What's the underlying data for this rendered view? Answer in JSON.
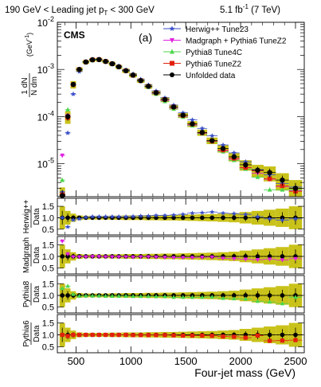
{
  "header": {
    "selection": "190 GeV < Leading jet p",
    "selection_sub": "T",
    "selection_tail": " < 300 GeV",
    "lumi": "5.1 fb",
    "lumi_sup": "-1",
    "energy": " (7 TeV)"
  },
  "chart_data": {
    "type": "scatter",
    "tag": "CMS",
    "panel_label": "(a)",
    "xlabel": "Four-jet mass (GeV)",
    "xlim": [
      330,
      2580
    ],
    "x_ticks": [
      500,
      1000,
      1500,
      2000,
      2500
    ],
    "main": {
      "ylabel_num": "1 dN",
      "ylabel_den": "N dm",
      "ylabel_unit": "(GeV",
      "ylabel_unit_sup": "-1",
      "ylabel_unit_close": ")",
      "yscale": "log",
      "ylim": [
        2e-06,
        0.01
      ],
      "y_ticks": [
        {
          "value": 0.01,
          "base": "10",
          "exp": "-2"
        },
        {
          "value": 0.001,
          "base": "10",
          "exp": "-3"
        },
        {
          "value": 0.0001,
          "base": "10",
          "exp": "-4"
        },
        {
          "value": 1e-05,
          "base": "10",
          "exp": "-5"
        }
      ],
      "legend_position": "top-right",
      "x": [
        375,
        425,
        475,
        530,
        590,
        650,
        710,
        770,
        830,
        890,
        955,
        1020,
        1090,
        1160,
        1230,
        1310,
        1390,
        1475,
        1560,
        1650,
        1740,
        1840,
        1940,
        2045,
        2155,
        2265,
        2380,
        2500
      ],
      "xerr": [
        25,
        25,
        25,
        30,
        30,
        30,
        30,
        30,
        30,
        30,
        35,
        35,
        35,
        35,
        40,
        40,
        40,
        45,
        45,
        45,
        50,
        50,
        50,
        55,
        55,
        55,
        60,
        60
      ],
      "band_rel": [
        0.5,
        0.3,
        0.18,
        0.1,
        0.08,
        0.08,
        0.08,
        0.08,
        0.09,
        0.09,
        0.1,
        0.1,
        0.1,
        0.11,
        0.11,
        0.12,
        0.12,
        0.13,
        0.14,
        0.15,
        0.16,
        0.18,
        0.2,
        0.25,
        0.3,
        0.35,
        0.4,
        0.5
      ],
      "series": [
        {
          "name": "Herwig++ Tune23",
          "color": "#3b4fc9",
          "marker": "star",
          "values": [
            2.5e-06,
            4.5e-05,
            0.0003,
            0.0009,
            0.00145,
            0.00165,
            0.00165,
            0.0015,
            0.00135,
            0.00118,
            0.00098,
            0.0008,
            0.00062,
            0.00047,
            0.00035,
            0.00025,
            0.000175,
            0.00012,
            8.5e-05,
            5.6e-05,
            3.9e-05,
            2.5e-05,
            1.7e-05,
            1.1e-05,
            7.5e-06,
            5.8e-06,
            3.8e-06,
            3.2e-06
          ]
        },
        {
          "name": "Madgraph + Pythia6 TuneZ2",
          "color": "#e020e0",
          "marker": "triangle-down",
          "values": [
            1.5e-05,
            0.000105,
            0.00047,
            0.00098,
            0.00142,
            0.00158,
            0.0016,
            0.00145,
            0.0013,
            0.00112,
            0.00092,
            0.00074,
            0.00057,
            0.00043,
            0.00031,
            0.00022,
            0.00015,
            0.0001,
            6.6e-05,
            4.4e-05,
            3e-05,
            1.9e-05,
            1.25e-05,
            8.2e-06,
            6.3e-06,
            4.7e-06,
            3.3e-06,
            2.7e-06
          ]
        },
        {
          "name": "Pythia8 Tune4C",
          "color": "#4cd64c",
          "marker": "triangle-up",
          "values": [
            4.5e-06,
            0.00014,
            0.0005,
            0.00097,
            0.0014,
            0.00156,
            0.00158,
            0.00144,
            0.00129,
            0.00111,
            0.00091,
            0.00073,
            0.00056,
            0.00042,
            0.0003,
            0.00021,
            0.000145,
            9.8e-05,
            6.4e-05,
            4.3e-05,
            2.9e-05,
            1.8e-05,
            1.18e-05,
            7.7e-06,
            5.2e-06,
            2.8e-06,
            2.8e-06,
            2.8e-06
          ]
        },
        {
          "name": "Pythia6 TuneZ2",
          "color": "#e3200c",
          "marker": "square",
          "values": [
            2.2e-06,
            9.5e-05,
            0.00048,
            0.001,
            0.00144,
            0.0016,
            0.00162,
            0.00148,
            0.00132,
            0.00114,
            0.00094,
            0.00075,
            0.00058,
            0.00044,
            0.00032,
            0.00023,
            0.00016,
            0.000105,
            6.9e-05,
            4.5e-05,
            3e-05,
            1.95e-05,
            1.3e-05,
            8.3e-06,
            7.1e-06,
            4.8e-06,
            3.4e-06,
            2.6e-06
          ]
        },
        {
          "name": "Unfolded data",
          "color": "#000000",
          "marker": "circle",
          "values": [
            2.1e-06,
            0.0001,
            0.00048,
            0.001,
            0.00144,
            0.0016,
            0.00162,
            0.00148,
            0.00132,
            0.00114,
            0.00094,
            0.00076,
            0.00058,
            0.00044,
            0.00032,
            0.00023,
            0.00016,
            0.000107,
            7e-05,
            4.6e-05,
            3.1e-05,
            2.1e-05,
            1.4e-05,
            9.5e-06,
            7.3e-06,
            6.5e-06,
            4.5e-06,
            3e-06
          ]
        }
      ]
    },
    "ratio_panels": [
      {
        "ylabel": "Herwig++",
        "den": "Data",
        "color": "#3b4fc9",
        "marker": "star",
        "ylim": [
          0.25,
          1.85
        ],
        "y_ticks": [
          0.5,
          1.0,
          1.5
        ],
        "values": [
          1.0,
          0.6,
          0.9,
          0.95,
          1.02,
          1.05,
          1.05,
          1.05,
          1.05,
          1.05,
          1.05,
          1.06,
          1.08,
          1.08,
          1.1,
          1.1,
          1.12,
          1.15,
          1.2,
          1.22,
          1.25,
          1.2,
          1.18,
          1.15,
          1.05,
          0.95,
          0.9,
          0.95
        ]
      },
      {
        "ylabel": "Madgraph",
        "den": "Data",
        "color": "#e020e0",
        "marker": "triangle-down",
        "ylim": [
          0.25,
          1.85
        ],
        "y_ticks": [
          0.5,
          1.0,
          1.5
        ],
        "values": [
          1.65,
          1.1,
          0.98,
          0.98,
          0.98,
          0.99,
          0.99,
          0.98,
          0.98,
          0.98,
          0.98,
          0.97,
          0.98,
          0.98,
          0.97,
          0.96,
          0.95,
          0.95,
          0.95,
          0.96,
          0.97,
          0.92,
          0.9,
          0.88,
          0.86,
          0.88,
          0.85,
          0.9
        ]
      },
      {
        "ylabel": "Pythia8",
        "den": "Data",
        "color": "#4cd64c",
        "marker": "triangle-up",
        "ylim": [
          0.25,
          1.85
        ],
        "y_ticks": [
          0.5,
          1.0,
          1.5
        ],
        "values": [
          1.3,
          1.4,
          1.05,
          0.97,
          0.98,
          0.98,
          0.98,
          0.97,
          0.97,
          0.97,
          0.97,
          0.96,
          0.96,
          0.96,
          0.95,
          0.95,
          0.92,
          0.92,
          0.92,
          0.92,
          0.93,
          0.88,
          0.86,
          0.85,
          0.75,
          0.72,
          0.65,
          0.92
        ]
      },
      {
        "ylabel": "Pythia6",
        "den": "Data",
        "color": "#e3200c",
        "marker": "square",
        "ylim": [
          0.25,
          1.85
        ],
        "y_ticks": [
          0.5,
          1.0,
          1.5
        ],
        "values": [
          1.0,
          0.95,
          1.0,
          1.0,
          1.0,
          1.0,
          1.0,
          1.0,
          1.0,
          1.0,
          1.0,
          0.99,
          0.99,
          0.99,
          0.99,
          0.99,
          0.98,
          0.97,
          0.97,
          0.97,
          0.96,
          0.93,
          0.92,
          0.88,
          0.97,
          0.75,
          0.76,
          0.78
        ]
      }
    ]
  }
}
